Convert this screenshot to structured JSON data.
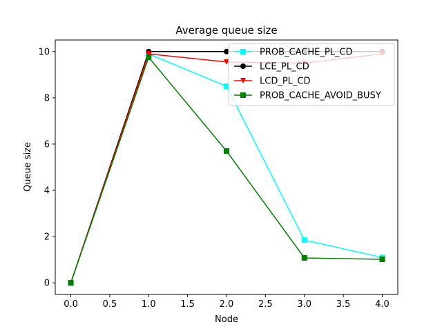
{
  "chart_data": {
    "type": "line",
    "title": "Average queue size",
    "xlabel": "Node",
    "ylabel": "Queue size",
    "xlim": [
      -0.2,
      4.2
    ],
    "ylim": [
      -0.5,
      10.5
    ],
    "xticks": [
      0.0,
      0.5,
      1.0,
      1.5,
      2.0,
      2.5,
      3.0,
      3.5,
      4.0
    ],
    "xtick_labels": [
      "0.0",
      "0.5",
      "1.0",
      "1.5",
      "2.0",
      "2.5",
      "3.0",
      "3.5",
      "4.0"
    ],
    "yticks": [
      0,
      2,
      4,
      6,
      8,
      10
    ],
    "ytick_labels": [
      "0",
      "2",
      "4",
      "6",
      "8",
      "10"
    ],
    "grid": false,
    "legend_position": "top-right",
    "x": [
      0,
      1,
      2,
      3,
      4
    ],
    "series": [
      {
        "name": "PROB_CACHE_PL_CD",
        "color": "#00ffff",
        "marker": "square",
        "values": [
          0.0,
          9.9,
          8.5,
          1.85,
          1.1
        ]
      },
      {
        "name": "LCE_PL_CD",
        "color": "#000000",
        "marker": "circle",
        "values": [
          0.0,
          10.0,
          10.0,
          10.0,
          10.0
        ]
      },
      {
        "name": "LCD_PL_CD",
        "color": "#ff0000",
        "marker": "triangle-down",
        "values": [
          0.0,
          9.9,
          9.55,
          9.5,
          9.9
        ]
      },
      {
        "name": "PROB_CACHE_AVOID_BUSY",
        "color": "#008000",
        "marker": "square",
        "values": [
          0.0,
          9.75,
          5.7,
          1.08,
          1.02
        ]
      }
    ]
  }
}
